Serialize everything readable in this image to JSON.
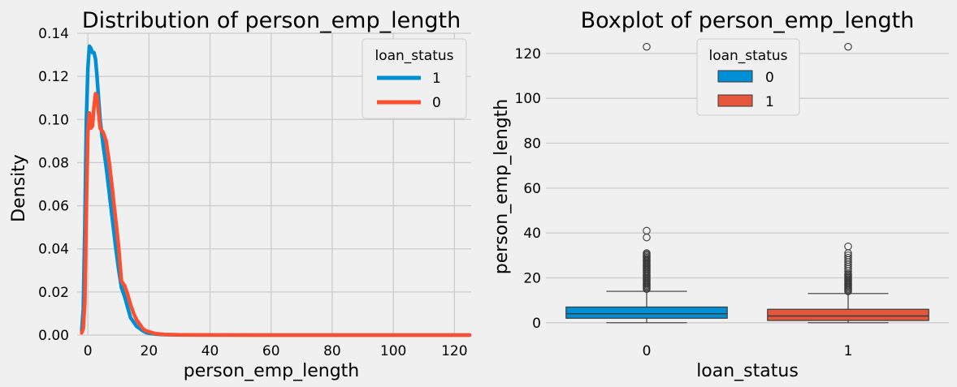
{
  "chart_data": [
    {
      "type": "line",
      "title": "Distribution of person_emp_length",
      "xlabel": "person_emp_length",
      "ylabel": "Density",
      "xlim": [
        -3.5,
        125.5
      ],
      "ylim": [
        0,
        0.14
      ],
      "xticks": [
        "0",
        "20",
        "40",
        "60",
        "80",
        "100",
        "120"
      ],
      "yticks": [
        "0.00",
        "0.02",
        "0.04",
        "0.06",
        "0.08",
        "0.10",
        "0.12",
        "0.14"
      ],
      "grid": true,
      "legend": {
        "title": "loan_status",
        "placement": "upper-right",
        "entries": [
          "1",
          "0"
        ]
      },
      "series": [
        {
          "name": "1",
          "color": "#008fd5",
          "x": [
            -2,
            -1.5,
            -1,
            -0.5,
            0,
            0.5,
            1,
            1.5,
            2,
            2.5,
            3,
            4,
            5,
            6,
            7,
            8,
            9,
            10,
            11,
            12,
            13,
            14,
            15,
            16,
            17,
            18,
            19,
            20,
            22,
            25,
            30,
            40,
            60,
            80,
            100,
            125
          ],
          "values": [
            0.002,
            0.012,
            0.05,
            0.1,
            0.124,
            0.134,
            0.133,
            0.131,
            0.131,
            0.128,
            0.12,
            0.1,
            0.088,
            0.078,
            0.066,
            0.054,
            0.042,
            0.031,
            0.022,
            0.018,
            0.013,
            0.008,
            0.006,
            0.004,
            0.003,
            0.002,
            0.0012,
            0.0008,
            0.0005,
            0.0002,
            0.0001,
            5e-05,
            0,
            0,
            0,
            0
          ]
        },
        {
          "name": "0",
          "color": "#fc4f30",
          "x": [
            -2,
            -1.5,
            -1,
            -0.5,
            0,
            0.5,
            1,
            1.5,
            2,
            2.5,
            3,
            4,
            5,
            6,
            7,
            8,
            9,
            10,
            11,
            12,
            13,
            14,
            15,
            16,
            17,
            18,
            19,
            20,
            22,
            25,
            30,
            40,
            60,
            80,
            100,
            125
          ],
          "values": [
            0.001,
            0.003,
            0.015,
            0.06,
            0.094,
            0.103,
            0.096,
            0.097,
            0.106,
            0.112,
            0.111,
            0.096,
            0.094,
            0.09,
            0.08,
            0.068,
            0.055,
            0.042,
            0.025,
            0.023,
            0.019,
            0.014,
            0.01,
            0.007,
            0.005,
            0.003,
            0.002,
            0.0015,
            0.0007,
            0.0003,
            0.0001,
            5e-05,
            0,
            0,
            0,
            0
          ]
        }
      ]
    },
    {
      "type": "box",
      "title": "Boxplot of person_emp_length",
      "xlabel": "loan_status",
      "ylabel": "person_emp_length",
      "categories": [
        "0",
        "1"
      ],
      "ylim": [
        -5.5,
        129
      ],
      "yticks": [
        "0",
        "20",
        "40",
        "60",
        "80",
        "100",
        "120"
      ],
      "grid": true,
      "legend": {
        "title": "loan_status",
        "placement": "upper-center",
        "entries": [
          "0",
          "1"
        ]
      },
      "boxes": [
        {
          "category": "0",
          "color": "#008fd5",
          "min": 0,
          "q1": 2,
          "median": 4,
          "q3": 7,
          "max": 14,
          "outliers": [
            15,
            15.5,
            16,
            16.5,
            17,
            17.5,
            18,
            18.5,
            19,
            19.5,
            20,
            20.5,
            21,
            21.5,
            22,
            22.5,
            23,
            23.5,
            24,
            24.5,
            25,
            25.5,
            26,
            26.5,
            27,
            27.5,
            28,
            28.5,
            29,
            29.5,
            30,
            30.5,
            31,
            38,
            41,
            123
          ]
        },
        {
          "category": "1",
          "color": "#e5573b",
          "min": 0,
          "q1": 1,
          "median": 3,
          "q3": 6,
          "max": 13,
          "outliers": [
            14,
            14.5,
            15,
            15.5,
            16,
            16.5,
            17,
            17.5,
            18,
            18.5,
            19,
            19.5,
            20,
            20.5,
            21,
            21.5,
            22,
            23,
            24,
            25,
            26,
            27,
            28,
            29,
            30,
            31,
            34,
            123
          ]
        }
      ]
    }
  ]
}
